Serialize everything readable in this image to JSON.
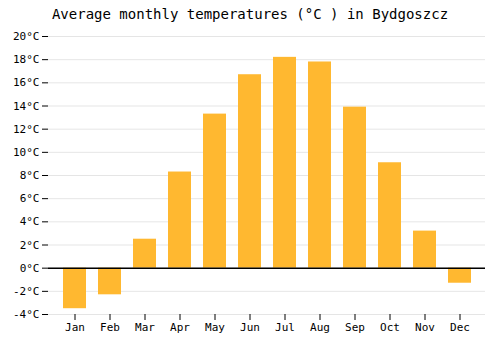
{
  "chart_data": {
    "type": "bar",
    "title": "Average monthly temperatures (°C ) in Bydgoszcz",
    "categories": [
      "Jan",
      "Feb",
      "Mar",
      "Apr",
      "May",
      "Jun",
      "Jul",
      "Aug",
      "Sep",
      "Oct",
      "Nov",
      "Dec"
    ],
    "values": [
      -3.5,
      -2.3,
      2.5,
      8.3,
      13.3,
      16.7,
      18.2,
      17.8,
      13.9,
      9.1,
      3.2,
      -1.3
    ],
    "color": "#FFB830",
    "ylim": [
      -4,
      20
    ],
    "yticks": [
      {
        "value": -4,
        "label": "-4°C"
      },
      {
        "value": -2,
        "label": "-2°C"
      },
      {
        "value": 0,
        "label": "0°C"
      },
      {
        "value": 2,
        "label": "2°C"
      },
      {
        "value": 4,
        "label": "4°C"
      },
      {
        "value": 6,
        "label": "6°C"
      },
      {
        "value": 8,
        "label": "8°C"
      },
      {
        "value": 10,
        "label": "10°C"
      },
      {
        "value": 12,
        "label": "12°C"
      },
      {
        "value": 14,
        "label": "14°C"
      },
      {
        "value": 16,
        "label": "16°C"
      },
      {
        "value": 18,
        "label": "18°C"
      },
      {
        "value": 20,
        "label": "20°C"
      }
    ],
    "grid": true
  }
}
